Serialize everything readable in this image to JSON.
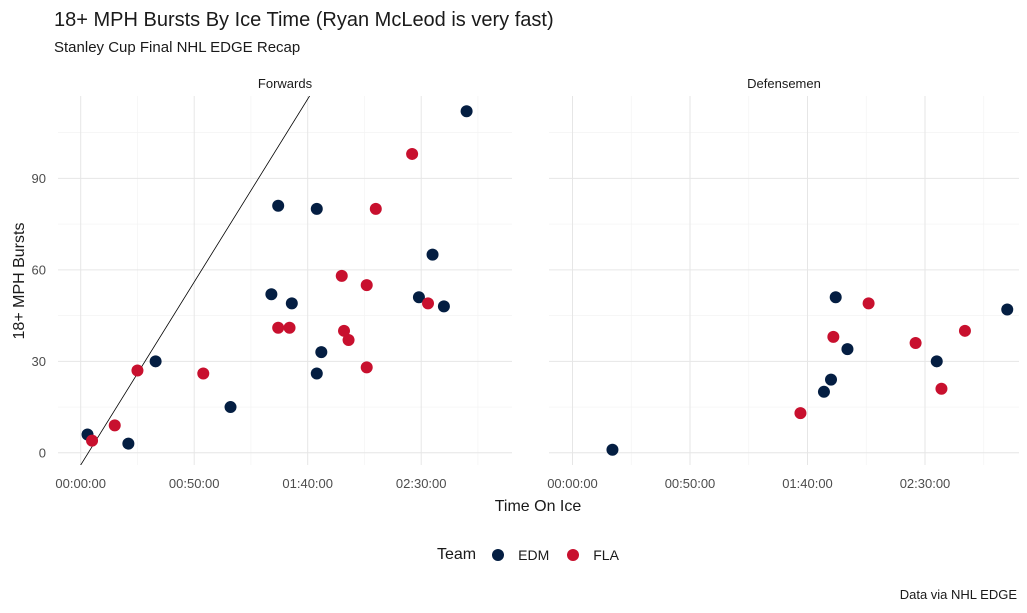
{
  "title": "18+ MPH Bursts By Ice Time (Ryan McLeod is very fast)",
  "subtitle": "Stanley Cup Final NHL EDGE Recap",
  "caption": "Data via NHL EDGE",
  "legend": {
    "title": "Team",
    "items": [
      {
        "label": "EDM",
        "color": "#041e42"
      },
      {
        "label": "FLA",
        "color": "#c8102e"
      }
    ]
  },
  "chart_data": {
    "type": "scatter",
    "xlabel": "Time On Ice",
    "ylabel": "18+ MPH Bursts",
    "x_unit": "minutes",
    "x_ticks": [
      {
        "value": 0,
        "label": "00:00:00"
      },
      {
        "value": 50,
        "label": "00:50:00"
      },
      {
        "value": 100,
        "label": "01:40:00"
      },
      {
        "value": 150,
        "label": "02:30:00"
      }
    ],
    "y_ticks": [
      {
        "value": 0,
        "label": "0"
      },
      {
        "value": 30,
        "label": "30"
      },
      {
        "value": 60,
        "label": "60"
      },
      {
        "value": 90,
        "label": "90"
      }
    ],
    "xlim": [
      -10,
      190
    ],
    "ylim": [
      -4,
      117
    ],
    "grid": true,
    "legend_position": "bottom",
    "panels": [
      {
        "title": "Forwards",
        "reference_line": {
          "slope": 1.2,
          "intercept": -4
        },
        "points": [
          {
            "team": "EDM",
            "x": 3,
            "y": 6
          },
          {
            "team": "FLA",
            "x": 5,
            "y": 4
          },
          {
            "team": "EDM",
            "x": 21,
            "y": 3
          },
          {
            "team": "FLA",
            "x": 15,
            "y": 9
          },
          {
            "team": "FLA",
            "x": 25,
            "y": 27
          },
          {
            "team": "EDM",
            "x": 33,
            "y": 30
          },
          {
            "team": "FLA",
            "x": 54,
            "y": 26
          },
          {
            "team": "EDM",
            "x": 66,
            "y": 15
          },
          {
            "team": "EDM",
            "x": 84,
            "y": 52
          },
          {
            "team": "FLA",
            "x": 87,
            "y": 41
          },
          {
            "team": "EDM",
            "x": 87,
            "y": 81
          },
          {
            "team": "FLA",
            "x": 92,
            "y": 41
          },
          {
            "team": "EDM",
            "x": 93,
            "y": 49
          },
          {
            "team": "EDM",
            "x": 104,
            "y": 80
          },
          {
            "team": "EDM",
            "x": 104,
            "y": 26
          },
          {
            "team": "EDM",
            "x": 106,
            "y": 33
          },
          {
            "team": "FLA",
            "x": 115,
            "y": 58
          },
          {
            "team": "FLA",
            "x": 116,
            "y": 40
          },
          {
            "team": "FLA",
            "x": 118,
            "y": 37
          },
          {
            "team": "FLA",
            "x": 126,
            "y": 28
          },
          {
            "team": "FLA",
            "x": 126,
            "y": 55
          },
          {
            "team": "FLA",
            "x": 130,
            "y": 80
          },
          {
            "team": "FLA",
            "x": 146,
            "y": 98
          },
          {
            "team": "EDM",
            "x": 149,
            "y": 51
          },
          {
            "team": "FLA",
            "x": 153,
            "y": 49
          },
          {
            "team": "EDM",
            "x": 155,
            "y": 65
          },
          {
            "team": "EDM",
            "x": 160,
            "y": 48
          },
          {
            "team": "EDM",
            "x": 170,
            "y": 112
          }
        ]
      },
      {
        "title": "Defensemen",
        "points": [
          {
            "team": "EDM",
            "x": 17,
            "y": 1
          },
          {
            "team": "FLA",
            "x": 97,
            "y": 13
          },
          {
            "team": "EDM",
            "x": 107,
            "y": 20
          },
          {
            "team": "EDM",
            "x": 110,
            "y": 24
          },
          {
            "team": "FLA",
            "x": 111,
            "y": 38
          },
          {
            "team": "EDM",
            "x": 112,
            "y": 51
          },
          {
            "team": "EDM",
            "x": 117,
            "y": 34
          },
          {
            "team": "FLA",
            "x": 126,
            "y": 49
          },
          {
            "team": "FLA",
            "x": 146,
            "y": 36
          },
          {
            "team": "EDM",
            "x": 155,
            "y": 30
          },
          {
            "team": "FLA",
            "x": 157,
            "y": 21
          },
          {
            "team": "FLA",
            "x": 167,
            "y": 40
          },
          {
            "team": "EDM",
            "x": 185,
            "y": 47
          }
        ]
      }
    ]
  }
}
